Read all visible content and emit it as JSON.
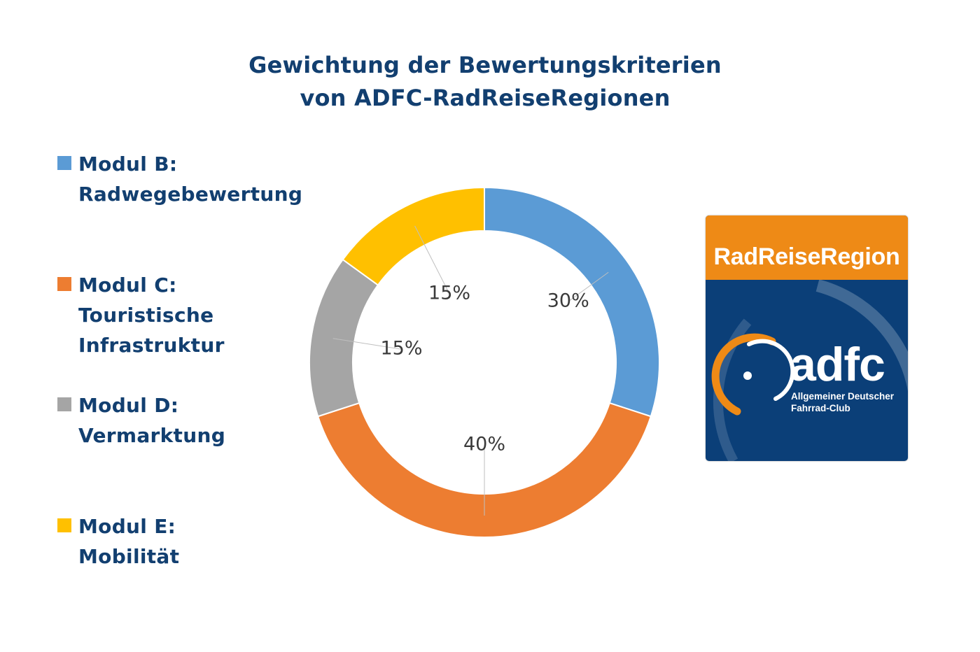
{
  "chart_data": {
    "type": "pie",
    "donut": true,
    "title": "Gewichtung der Bewertungskriterien von ADFC-RadReiseRegionen",
    "title_lines": [
      "Gewichtung der Bewertungskriterien",
      "von ADFC-RadReiseRegionen"
    ],
    "slices": [
      {
        "legend_lines": [
          "Modul B:",
          "Radwegebewertung"
        ],
        "value": 30,
        "label": "30%",
        "color": "#5b9bd5"
      },
      {
        "legend_lines": [
          "Modul C:",
          "Touristische",
          "Infrastruktur"
        ],
        "value": 40,
        "label": "40%",
        "color": "#ed7d31"
      },
      {
        "legend_lines": [
          "Modul D:",
          "Vermarktung"
        ],
        "value": 15,
        "label": "15%",
        "color": "#a5a5a5"
      },
      {
        "legend_lines": [
          "Modul E:",
          "Mobilität"
        ],
        "value": 15,
        "label": "15%",
        "color": "#ffc000"
      }
    ],
    "legend_position": "left",
    "text_color": "#123f70"
  },
  "logo": {
    "banner": "RadReiseRegion",
    "brand": "adfc",
    "subtitle_lines": [
      "Allgemeiner Deutscher",
      "Fahrrad-Club"
    ],
    "colors": {
      "orange": "#ee8a16",
      "blue": "#0b3f78"
    }
  }
}
